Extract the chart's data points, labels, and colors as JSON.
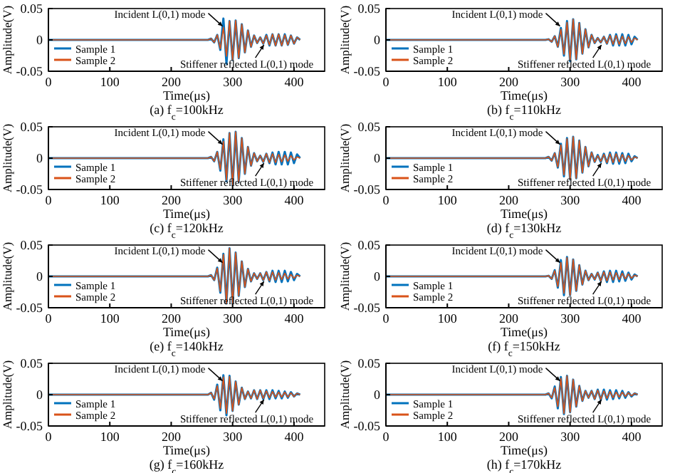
{
  "chart_data": [
    {
      "type": "line",
      "title": "(a) f$_{c}$=100kHz",
      "xlabel": "Time(μs)",
      "ylabel": "Amplitude(V)",
      "xlim": [
        0,
        450
      ],
      "xticks": [
        0,
        100,
        200,
        300,
        400
      ],
      "ylim": [
        -0.05,
        0.05
      ],
      "yticks": [
        -0.05,
        0,
        0.05
      ],
      "legend": "bottom left",
      "annotations": [
        "Incident L(0,1) mode",
        "Stiffener reflected L(0,1) mode"
      ],
      "x": [
        0,
        260,
        265,
        270,
        275,
        280,
        285,
        290,
        295,
        300,
        305,
        310,
        315,
        320,
        325,
        330,
        335,
        340,
        345,
        350,
        355,
        360,
        365,
        370,
        375,
        380,
        385,
        390,
        395,
        400,
        405,
        410
      ],
      "series": [
        {
          "name": "Sample 1",
          "color": "#0072bd",
          "values": [
            0,
            0,
            0.002,
            -0.004,
            0.008,
            -0.016,
            0.034,
            -0.038,
            0.03,
            -0.032,
            0.031,
            -0.029,
            0.025,
            -0.02,
            0.015,
            -0.011,
            0.007,
            -0.005,
            0.004,
            -0.006,
            0.008,
            -0.009,
            0.009,
            -0.009,
            0.009,
            -0.009,
            0.009,
            -0.008,
            0.007,
            -0.006,
            0.004,
            0
          ]
        },
        {
          "name": "Sample 2",
          "color": "#d95319",
          "values": [
            0,
            0,
            0.002,
            -0.004,
            0.008,
            -0.014,
            0.02,
            -0.026,
            0.03,
            -0.032,
            0.031,
            -0.029,
            0.025,
            -0.02,
            0.015,
            -0.011,
            0.007,
            -0.005,
            0.004,
            -0.006,
            0.007,
            -0.008,
            0.009,
            -0.009,
            0.009,
            -0.009,
            0.008,
            -0.008,
            0.007,
            -0.006,
            0.004,
            0
          ]
        }
      ]
    },
    {
      "type": "line",
      "title": "(b) f$_{c}$=110kHz",
      "xlabel": "Time(μs)",
      "ylabel": "Amplitude(V)",
      "xlim": [
        0,
        450
      ],
      "xticks": [
        0,
        100,
        200,
        300,
        400
      ],
      "ylim": [
        -0.05,
        0.05
      ],
      "yticks": [
        -0.05,
        0,
        0.05
      ],
      "legend": "bottom left",
      "annotations": [
        "Incident L(0,1) mode",
        "Stiffener reflected L(0,1) mode"
      ],
      "x": [
        0,
        260,
        265,
        270,
        275,
        280,
        285,
        290,
        295,
        300,
        305,
        310,
        315,
        320,
        325,
        330,
        335,
        340,
        345,
        350,
        355,
        360,
        365,
        370,
        375,
        380,
        385,
        390,
        395,
        400,
        405,
        410
      ],
      "series": [
        {
          "name": "Sample 1",
          "color": "#0072bd",
          "values": [
            0,
            0,
            0.001,
            -0.003,
            0.006,
            -0.011,
            0.019,
            -0.025,
            0.03,
            -0.034,
            0.033,
            -0.031,
            0.027,
            -0.022,
            0.017,
            -0.012,
            0.008,
            -0.005,
            0.003,
            -0.004,
            0.005,
            -0.006,
            0.008,
            -0.009,
            0.009,
            -0.009,
            0.009,
            -0.009,
            0.008,
            -0.007,
            0.005,
            0
          ]
        },
        {
          "name": "Sample 2",
          "color": "#d95319",
          "values": [
            0,
            0,
            0.001,
            -0.003,
            0.006,
            -0.011,
            0.017,
            -0.023,
            0.028,
            -0.032,
            0.033,
            -0.031,
            0.027,
            -0.022,
            0.017,
            -0.012,
            0.008,
            -0.005,
            0.003,
            -0.004,
            0.005,
            -0.006,
            0.007,
            -0.007,
            0.007,
            -0.007,
            0.006,
            -0.006,
            0.005,
            -0.004,
            0.003,
            0
          ]
        }
      ]
    },
    {
      "type": "line",
      "title": "(c) f$_{c}$=120kHz",
      "xlabel": "Time(μs)",
      "ylabel": "Amplitude(V)",
      "xlim": [
        0,
        450
      ],
      "xticks": [
        0,
        100,
        200,
        300,
        400
      ],
      "ylim": [
        -0.05,
        0.05
      ],
      "yticks": [
        -0.05,
        0,
        0.05
      ],
      "legend": "bottom left",
      "annotations": [
        "Incident L(0,1) mode",
        "Stiffener reflected L(0,1) mode"
      ],
      "x": [
        0,
        260,
        265,
        270,
        275,
        280,
        285,
        290,
        295,
        300,
        305,
        310,
        315,
        320,
        325,
        330,
        335,
        340,
        345,
        350,
        355,
        360,
        365,
        370,
        375,
        380,
        385,
        390,
        395,
        400,
        405,
        410
      ],
      "series": [
        {
          "name": "Sample 1",
          "color": "#0072bd",
          "values": [
            0,
            0,
            0.002,
            -0.005,
            0.01,
            -0.02,
            0.03,
            -0.037,
            0.04,
            -0.043,
            0.042,
            -0.038,
            0.032,
            -0.025,
            0.018,
            -0.012,
            0.008,
            -0.005,
            0.004,
            -0.006,
            0.007,
            -0.008,
            0.009,
            -0.01,
            0.01,
            -0.01,
            0.01,
            -0.01,
            0.009,
            -0.008,
            0.006,
            0
          ]
        },
        {
          "name": "Sample 2",
          "color": "#d95319",
          "values": [
            0,
            0,
            0.002,
            -0.005,
            0.01,
            -0.018,
            0.027,
            -0.035,
            0.04,
            -0.043,
            0.042,
            -0.038,
            0.032,
            -0.025,
            0.018,
            -0.012,
            0.008,
            -0.005,
            0.004,
            -0.006,
            0.007,
            -0.007,
            0.007,
            -0.007,
            0.006,
            -0.006,
            0.005,
            -0.005,
            0.004,
            -0.003,
            0.002,
            0
          ]
        }
      ]
    },
    {
      "type": "line",
      "title": "(d) f$_{c}$=130kHz",
      "xlabel": "Time(μs)",
      "ylabel": "Amplitude(V)",
      "xlim": [
        0,
        450
      ],
      "xticks": [
        0,
        100,
        200,
        300,
        400
      ],
      "ylim": [
        -0.05,
        0.05
      ],
      "yticks": [
        -0.05,
        0,
        0.05
      ],
      "legend": "bottom left",
      "annotations": [
        "Incident L(0,1) mode",
        "Stiffener reflected L(0,1) mode"
      ],
      "x": [
        0,
        260,
        265,
        270,
        275,
        280,
        285,
        290,
        295,
        300,
        305,
        310,
        315,
        320,
        325,
        330,
        335,
        340,
        345,
        350,
        355,
        360,
        365,
        370,
        375,
        380,
        385,
        390,
        395,
        400,
        405,
        410
      ],
      "series": [
        {
          "name": "Sample 1",
          "color": "#0072bd",
          "values": [
            0,
            0,
            0.002,
            -0.004,
            0.008,
            -0.015,
            0.023,
            -0.029,
            0.032,
            -0.034,
            0.034,
            -0.032,
            0.028,
            -0.023,
            0.018,
            -0.013,
            0.009,
            -0.006,
            0.005,
            -0.006,
            0.007,
            -0.008,
            0.009,
            -0.009,
            0.009,
            -0.009,
            0.008,
            -0.008,
            0.007,
            -0.005,
            0.003,
            0
          ]
        },
        {
          "name": "Sample 2",
          "color": "#d95319",
          "values": [
            0,
            0,
            0.002,
            -0.004,
            0.008,
            -0.014,
            0.021,
            -0.027,
            0.031,
            -0.034,
            0.034,
            -0.032,
            0.028,
            -0.023,
            0.018,
            -0.013,
            0.009,
            -0.006,
            0.004,
            -0.005,
            0.006,
            -0.007,
            0.007,
            -0.007,
            0.007,
            -0.006,
            0.006,
            -0.005,
            0.004,
            -0.003,
            0.002,
            0
          ]
        }
      ]
    },
    {
      "type": "line",
      "title": "(e) f$_{c}$=140kHz",
      "xlabel": "Time(μs)",
      "ylabel": "Amplitude(V)",
      "xlim": [
        0,
        450
      ],
      "xticks": [
        0,
        100,
        200,
        300,
        400
      ],
      "ylim": [
        -0.05,
        0.05
      ],
      "yticks": [
        -0.05,
        0,
        0.05
      ],
      "legend": "bottom left",
      "annotations": [
        "Incident L(0,1) mode",
        "Stiffener reflected L(0,1) mode"
      ],
      "x": [
        0,
        260,
        265,
        270,
        275,
        280,
        285,
        290,
        295,
        300,
        305,
        310,
        315,
        320,
        325,
        330,
        335,
        340,
        345,
        350,
        355,
        360,
        365,
        370,
        375,
        380,
        385,
        390,
        395,
        400,
        405,
        410
      ],
      "series": [
        {
          "name": "Sample 1",
          "color": "#0072bd",
          "values": [
            0,
            0,
            0.002,
            -0.006,
            0.014,
            -0.026,
            0.036,
            -0.043,
            0.045,
            -0.043,
            0.038,
            -0.031,
            0.024,
            -0.017,
            0.012,
            -0.008,
            0.005,
            -0.004,
            0.005,
            -0.006,
            0.007,
            -0.008,
            0.009,
            -0.009,
            0.009,
            -0.009,
            0.009,
            -0.008,
            0.007,
            -0.006,
            0.004,
            0
          ]
        },
        {
          "name": "Sample 2",
          "color": "#d95319",
          "values": [
            0,
            0,
            0.002,
            -0.006,
            0.013,
            -0.024,
            0.035,
            -0.043,
            0.045,
            -0.043,
            0.038,
            -0.031,
            0.024,
            -0.017,
            0.012,
            -0.008,
            0.005,
            -0.004,
            0.005,
            -0.006,
            0.007,
            -0.007,
            0.007,
            -0.006,
            0.006,
            -0.005,
            0.005,
            -0.004,
            0.003,
            -0.003,
            0.002,
            0
          ]
        }
      ]
    },
    {
      "type": "line",
      "title": "(f) f$_{c}$=150kHz",
      "xlabel": "Time(μs)",
      "ylabel": "Amplitude(V)",
      "xlim": [
        0,
        450
      ],
      "xticks": [
        0,
        100,
        200,
        300,
        400
      ],
      "ylim": [
        -0.05,
        0.05
      ],
      "yticks": [
        -0.05,
        0,
        0.05
      ],
      "legend": "bottom left",
      "annotations": [
        "Incident L(0,1) mode",
        "Stiffener reflected L(0,1) mode"
      ],
      "x": [
        0,
        260,
        265,
        270,
        275,
        280,
        285,
        290,
        295,
        300,
        305,
        310,
        315,
        320,
        325,
        330,
        335,
        340,
        345,
        350,
        355,
        360,
        365,
        370,
        375,
        380,
        385,
        390,
        395,
        400,
        405,
        410
      ],
      "series": [
        {
          "name": "Sample 1",
          "color": "#0072bd",
          "values": [
            0,
            0,
            0.001,
            -0.004,
            0.01,
            -0.018,
            0.026,
            -0.03,
            0.031,
            -0.03,
            0.027,
            -0.023,
            0.018,
            -0.013,
            0.009,
            -0.006,
            0.004,
            -0.005,
            0.006,
            -0.007,
            0.008,
            -0.009,
            0.009,
            -0.009,
            0.009,
            -0.008,
            0.008,
            -0.007,
            0.006,
            -0.005,
            0.003,
            0
          ]
        },
        {
          "name": "Sample 2",
          "color": "#d95319",
          "values": [
            0,
            0,
            0.001,
            -0.004,
            0.009,
            -0.016,
            0.022,
            -0.027,
            0.03,
            -0.03,
            0.027,
            -0.023,
            0.018,
            -0.013,
            0.009,
            -0.006,
            0.004,
            -0.005,
            0.006,
            -0.007,
            0.007,
            -0.007,
            0.007,
            -0.006,
            0.006,
            -0.005,
            0.005,
            -0.004,
            0.004,
            -0.003,
            0.002,
            0
          ]
        }
      ]
    },
    {
      "type": "line",
      "title": "(g) f$_{c}$=160kHz",
      "xlabel": "Time(μs)",
      "ylabel": "Amplitude(V)",
      "xlim": [
        0,
        450
      ],
      "xticks": [
        0,
        100,
        200,
        300,
        400
      ],
      "ylim": [
        -0.05,
        0.05
      ],
      "yticks": [
        -0.05,
        0,
        0.05
      ],
      "legend": "bottom left",
      "annotations": [
        "Incident L(0,1) mode",
        "Stiffener reflected L(0,1) mode"
      ],
      "x": [
        0,
        260,
        265,
        270,
        275,
        280,
        285,
        290,
        295,
        300,
        305,
        310,
        315,
        320,
        325,
        330,
        335,
        340,
        345,
        350,
        355,
        360,
        365,
        370,
        375,
        380,
        385,
        390,
        395,
        400,
        405,
        410
      ],
      "series": [
        {
          "name": "Sample 1",
          "color": "#0072bd",
          "values": [
            0,
            0,
            0.003,
            -0.008,
            0.016,
            -0.025,
            0.031,
            -0.033,
            0.03,
            -0.026,
            0.021,
            -0.016,
            0.011,
            -0.007,
            0.005,
            -0.006,
            0.007,
            -0.007,
            0.007,
            -0.007,
            0.007,
            -0.007,
            0.007,
            -0.006,
            0.006,
            -0.006,
            0.005,
            -0.005,
            0.004,
            -0.003,
            0.002,
            0
          ]
        },
        {
          "name": "Sample 2",
          "color": "#d95319",
          "values": [
            0,
            0,
            0.003,
            -0.007,
            0.014,
            -0.022,
            0.028,
            -0.03,
            0.029,
            -0.026,
            0.021,
            -0.016,
            0.011,
            -0.007,
            0.005,
            -0.006,
            0.007,
            -0.007,
            0.007,
            -0.006,
            0.006,
            -0.005,
            0.005,
            -0.004,
            0.004,
            -0.004,
            0.004,
            -0.004,
            0.003,
            -0.003,
            0.002,
            0
          ]
        }
      ]
    },
    {
      "type": "line",
      "title": "(h) f$_{c}$=170kHz",
      "xlabel": "Time(μs)",
      "ylabel": "Amplitude(V)",
      "xlim": [
        0,
        450
      ],
      "xticks": [
        0,
        100,
        200,
        300,
        400
      ],
      "ylim": [
        -0.05,
        0.05
      ],
      "yticks": [
        -0.05,
        0,
        0.05
      ],
      "legend": "bottom left",
      "annotations": [
        "Incident L(0,1) mode",
        "Stiffener reflected L(0,1) mode"
      ],
      "x": [
        0,
        260,
        265,
        270,
        275,
        280,
        285,
        290,
        295,
        300,
        305,
        310,
        315,
        320,
        325,
        330,
        335,
        340,
        345,
        350,
        355,
        360,
        365,
        370,
        375,
        380,
        385,
        390,
        395,
        400,
        405,
        410
      ],
      "series": [
        {
          "name": "Sample 1",
          "color": "#0072bd",
          "values": [
            0,
            0,
            0.002,
            -0.006,
            0.013,
            -0.022,
            0.028,
            -0.031,
            0.03,
            -0.028,
            0.024,
            -0.019,
            0.014,
            -0.01,
            0.006,
            -0.005,
            0.006,
            -0.007,
            0.008,
            -0.008,
            0.008,
            -0.008,
            0.007,
            -0.007,
            0.007,
            -0.006,
            0.006,
            -0.005,
            0.004,
            -0.003,
            0.002,
            0
          ]
        },
        {
          "name": "Sample 2",
          "color": "#d95319",
          "values": [
            0,
            0,
            0.002,
            -0.005,
            0.011,
            -0.019,
            0.026,
            -0.03,
            0.03,
            -0.028,
            0.024,
            -0.019,
            0.014,
            -0.01,
            0.006,
            -0.005,
            0.006,
            -0.007,
            0.007,
            -0.007,
            0.006,
            -0.006,
            0.005,
            -0.005,
            0.004,
            -0.004,
            0.004,
            -0.003,
            0.003,
            -0.002,
            0.002,
            0
          ]
        }
      ]
    }
  ]
}
